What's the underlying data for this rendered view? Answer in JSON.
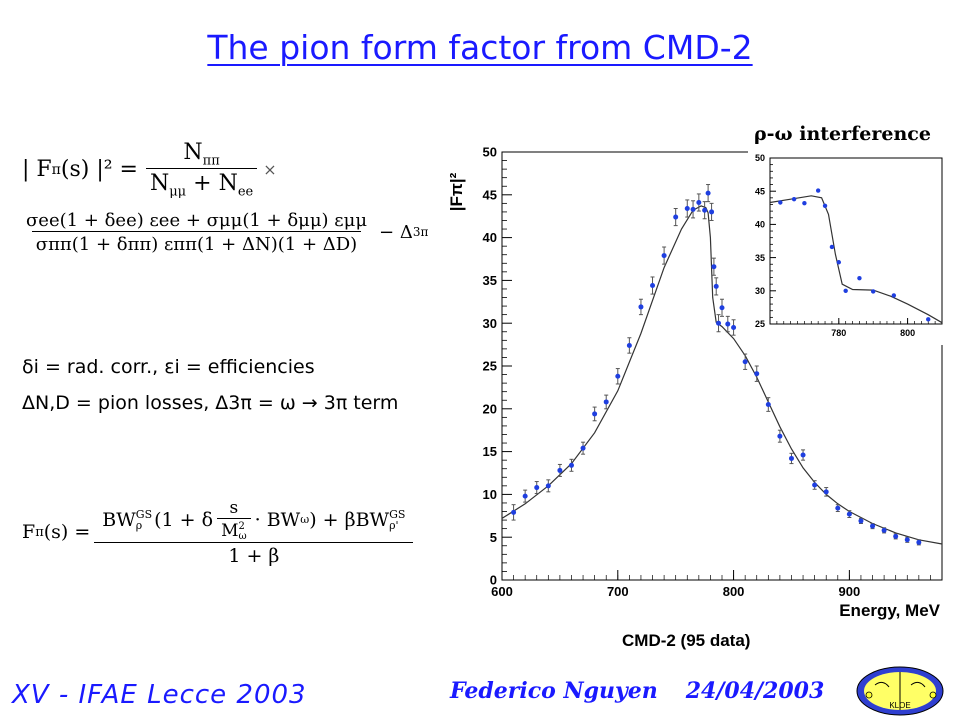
{
  "slide": {
    "title": "The pion form factor from CMD-2",
    "footer_left": "XV - IFAE Lecce 2003",
    "footer_author": "Federico Nguyen",
    "footer_date": "24/04/2003",
    "logo_text": "KLOE"
  },
  "formula1": {
    "lhs": "| F",
    "lhs_sub": "π",
    "lhs_tail": "(s) |² =",
    "frac1_num": "N",
    "frac1_num_sub": "ππ",
    "frac1_den_a": "N",
    "frac1_den_a_sub": "μμ",
    "frac1_plus": " + ",
    "frac1_den_b": "N",
    "frac1_den_b_sub": "ee",
    "times": "×",
    "frac2_num": "σee(1 + δee) εee + σμμ(1 + δμμ) εμμ",
    "frac2_den": "σππ(1 + δππ) εππ(1 + ΔN)(1 + ΔD)",
    "minus": "− Δ",
    "minus_sub": "3π"
  },
  "legend_text": {
    "line1": "δi = rad. corr., εi = efficiencies",
    "line2": "ΔN,D = pion losses, Δ3π = ω → 3π term"
  },
  "formula2": {
    "lhs": "F",
    "lhs_sub": "π",
    "lhs_tail": "(s) =",
    "num": "BW",
    "num_sup1": "GS",
    "num_sub1": "ρ",
    "num_mid1": "(1 + δ",
    "frac_s": "s",
    "frac_m": "M",
    "frac_m_sub": "ω",
    "frac_m_sup": "2",
    "num_mid2": "· BW",
    "num_sub2": "ω",
    "num_mid3": ") + βBW",
    "num_sup3": "GS",
    "num_sub3": "ρ'",
    "den": "1 + β"
  },
  "chart_data": [
    {
      "type": "scatter",
      "title": "",
      "xlabel": "Energy, MeV",
      "ylabel": "|Fπ|²",
      "caption": "CMD-2 (95 data)",
      "xlim": [
        600,
        980
      ],
      "ylim": [
        0,
        50
      ],
      "xticks": [
        "600",
        "700",
        "800",
        "900"
      ],
      "yticks": [
        "0",
        "5",
        "10",
        "15",
        "20",
        "25",
        "30",
        "35",
        "40",
        "45",
        "50"
      ],
      "points": [
        [
          610,
          7.9,
          0.9
        ],
        [
          620,
          9.8,
          0.7
        ],
        [
          630,
          10.8,
          0.7
        ],
        [
          640,
          11.0,
          0.7
        ],
        [
          650,
          12.8,
          0.7
        ],
        [
          660,
          13.4,
          0.7
        ],
        [
          670,
          15.4,
          0.7
        ],
        [
          680,
          19.4,
          0.8
        ],
        [
          690,
          20.8,
          0.8
        ],
        [
          700,
          23.8,
          0.9
        ],
        [
          710,
          27.4,
          0.9
        ],
        [
          720,
          31.9,
          0.9
        ],
        [
          730,
          34.4,
          1.0
        ],
        [
          740,
          37.9,
          1.0
        ],
        [
          750,
          42.4,
          1.0
        ],
        [
          760,
          43.4,
          1.0
        ],
        [
          765,
          43.3,
          1.0
        ],
        [
          770,
          44.1,
          1.0
        ],
        [
          775,
          43.2,
          1.0
        ],
        [
          778,
          45.2,
          1.0
        ],
        [
          781,
          43.0,
          1.0
        ],
        [
          783,
          36.6,
          1.0
        ],
        [
          785,
          34.3,
          1.0
        ],
        [
          787,
          30.0,
          1.0
        ],
        [
          790,
          31.8,
          1.0
        ],
        [
          795,
          29.9,
          0.9
        ],
        [
          800,
          29.5,
          0.9
        ],
        [
          810,
          25.5,
          0.9
        ],
        [
          820,
          24.1,
          0.9
        ],
        [
          830,
          20.5,
          0.8
        ],
        [
          840,
          16.8,
          0.7
        ],
        [
          850,
          14.2,
          0.6
        ],
        [
          860,
          14.6,
          0.6
        ],
        [
          870,
          11.1,
          0.5
        ],
        [
          880,
          10.3,
          0.5
        ],
        [
          890,
          8.4,
          0.4
        ],
        [
          900,
          7.7,
          0.4
        ],
        [
          910,
          6.9,
          0.3
        ],
        [
          920,
          6.3,
          0.3
        ],
        [
          930,
          5.8,
          0.3
        ],
        [
          940,
          5.1,
          0.3
        ],
        [
          950,
          4.7,
          0.3
        ],
        [
          960,
          4.4,
          0.3
        ]
      ],
      "fit": [
        [
          600,
          7.2
        ],
        [
          620,
          8.9
        ],
        [
          640,
          11.0
        ],
        [
          660,
          13.6
        ],
        [
          680,
          17.2
        ],
        [
          700,
          22.1
        ],
        [
          720,
          28.8
        ],
        [
          740,
          36.5
        ],
        [
          755,
          41.0
        ],
        [
          765,
          43.2
        ],
        [
          772,
          43.7
        ],
        [
          776,
          43.5
        ],
        [
          778,
          42.9
        ],
        [
          780,
          40.0
        ],
        [
          782,
          33.0
        ],
        [
          785,
          30.1
        ],
        [
          790,
          29.6
        ],
        [
          800,
          28.2
        ],
        [
          810,
          26.2
        ],
        [
          820,
          23.7
        ],
        [
          830,
          20.8
        ],
        [
          840,
          17.9
        ],
        [
          850,
          15.3
        ],
        [
          860,
          13.1
        ],
        [
          870,
          11.4
        ],
        [
          880,
          10.0
        ],
        [
          890,
          8.9
        ],
        [
          900,
          8.0
        ],
        [
          920,
          6.6
        ],
        [
          940,
          5.5
        ],
        [
          960,
          4.7
        ],
        [
          980,
          4.2
        ]
      ]
    },
    {
      "type": "scatter",
      "title": "ρ-ω interference",
      "xlabel": "",
      "ylabel": "",
      "xlim": [
        760,
        810
      ],
      "ylim": [
        25,
        50
      ],
      "xticks": [
        "780",
        "800"
      ],
      "yticks": [
        "25",
        "30",
        "35",
        "40",
        "45",
        "50"
      ],
      "points": [
        [
          763,
          43.3
        ],
        [
          767,
          43.8
        ],
        [
          770,
          43.2
        ],
        [
          774,
          45.1
        ],
        [
          776,
          42.8
        ],
        [
          778,
          36.6
        ],
        [
          780,
          34.3
        ],
        [
          782,
          30.0
        ],
        [
          786,
          31.9
        ],
        [
          790,
          29.9
        ],
        [
          796,
          29.3
        ],
        [
          806,
          25.7
        ]
      ],
      "fit": [
        [
          760,
          43.3
        ],
        [
          766,
          43.8
        ],
        [
          772,
          44.3
        ],
        [
          775,
          44.0
        ],
        [
          777,
          41.5
        ],
        [
          779,
          35.5
        ],
        [
          781,
          31.0
        ],
        [
          784,
          30.2
        ],
        [
          790,
          30.1
        ],
        [
          795,
          29.2
        ],
        [
          800,
          28.0
        ],
        [
          806,
          26.4
        ],
        [
          810,
          25.2
        ]
      ]
    }
  ]
}
